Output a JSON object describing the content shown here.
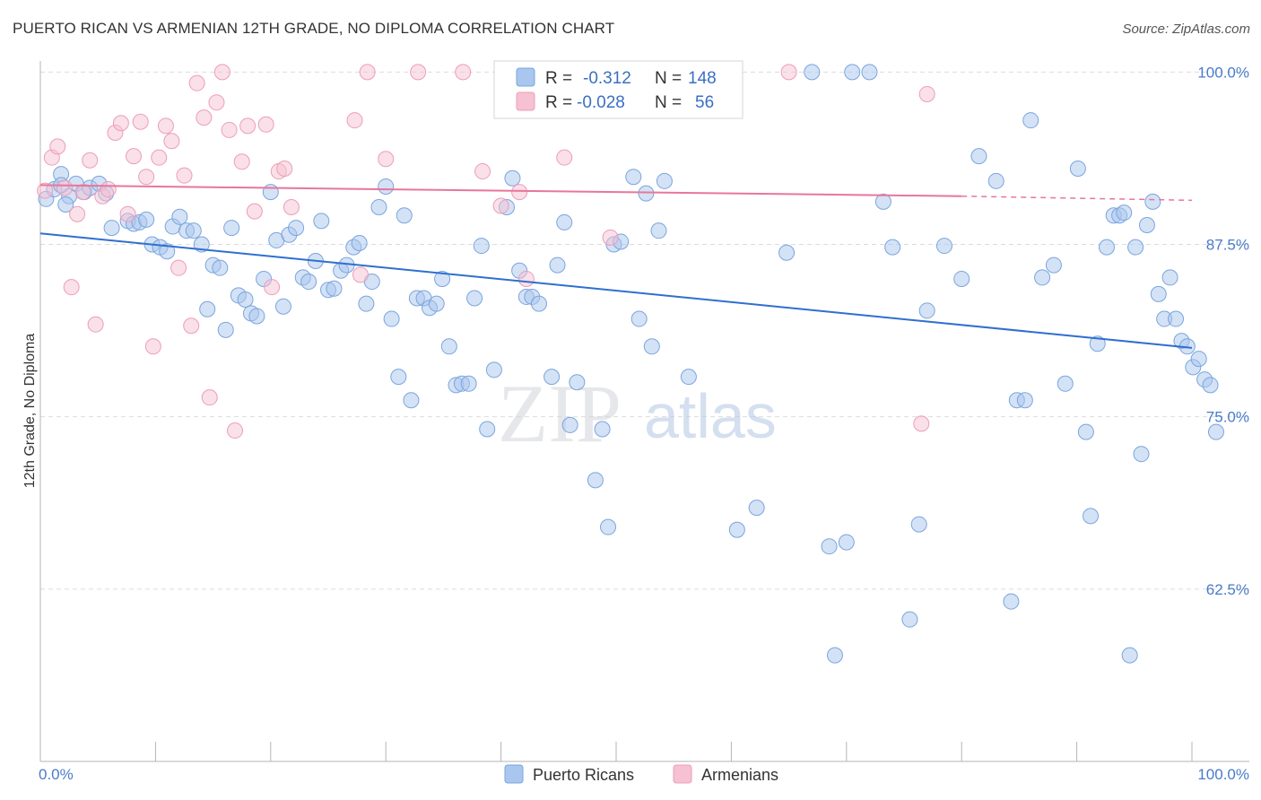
{
  "title": "PUERTO RICAN VS ARMENIAN 12TH GRADE, NO DIPLOMA CORRELATION CHART",
  "source": "Source: ZipAtlas.com",
  "watermark": {
    "zip": "ZIP",
    "atlas": "atlas"
  },
  "colors": {
    "blue_fill": "#a9c6ee",
    "blue_stroke": "#7aa5de",
    "blue_line": "#2f6fcf",
    "pink_fill": "#f6c1d2",
    "pink_stroke": "#ee9db7",
    "pink_line": "#e8769c",
    "tick_text": "#4a7bc8",
    "grid": "#dcdcdc"
  },
  "legend": {
    "rows": [
      {
        "r_label": "R =",
        "r_value": "-0.312",
        "n_label": "N =",
        "n_value": "148"
      },
      {
        "r_label": "R =",
        "r_value": "-0.028",
        "n_label": "N =",
        "n_value": "56"
      }
    ]
  },
  "chart_data": {
    "type": "scatter",
    "ylabel": "12th Grade, No Diploma",
    "xlim": [
      0,
      100
    ],
    "ylim": [
      50,
      101
    ],
    "x_tick_labels": [
      "0.0%",
      "100.0%"
    ],
    "y_ticks": [
      {
        "value": 100,
        "label": "100.0%"
      },
      {
        "value": 87.5,
        "label": "87.5%"
      },
      {
        "value": 75,
        "label": "75.0%"
      },
      {
        "value": 62.5,
        "label": "62.5%"
      }
    ],
    "grid": true,
    "legend_position": "top-center",
    "series": [
      {
        "name": "Puerto Ricans",
        "r": -0.312,
        "n": 148,
        "trend": {
          "x0": 0,
          "y0": 88.3,
          "x1": 100,
          "y1": 80.0
        },
        "points": [
          [
            0.5,
            90.8
          ],
          [
            1.2,
            91.5
          ],
          [
            1.8,
            92.6
          ],
          [
            2.5,
            91.0
          ],
          [
            3.1,
            91.9
          ],
          [
            3.8,
            91.3
          ],
          [
            4.3,
            91.6
          ],
          [
            5.1,
            91.9
          ],
          [
            5.7,
            91.2
          ],
          [
            7.6,
            89.2
          ],
          [
            8.1,
            89.0
          ],
          [
            8.6,
            89.1
          ],
          [
            9.2,
            89.3
          ],
          [
            9.7,
            87.5
          ],
          [
            10.4,
            87.3
          ],
          [
            11.0,
            87.0
          ],
          [
            11.5,
            88.8
          ],
          [
            12.1,
            89.5
          ],
          [
            12.7,
            88.5
          ],
          [
            13.3,
            88.5
          ],
          [
            14.0,
            87.5
          ],
          [
            14.5,
            82.8
          ],
          [
            15.0,
            86.0
          ],
          [
            15.6,
            85.8
          ],
          [
            16.1,
            81.3
          ],
          [
            16.6,
            88.7
          ],
          [
            17.2,
            83.8
          ],
          [
            17.8,
            83.5
          ],
          [
            18.3,
            82.5
          ],
          [
            18.8,
            82.3
          ],
          [
            19.4,
            85.0
          ],
          [
            20.0,
            91.3
          ],
          [
            20.5,
            87.8
          ],
          [
            21.1,
            83.0
          ],
          [
            21.6,
            88.2
          ],
          [
            22.2,
            88.7
          ],
          [
            22.8,
            85.1
          ],
          [
            23.3,
            84.8
          ],
          [
            23.9,
            86.3
          ],
          [
            24.4,
            89.2
          ],
          [
            25.0,
            84.2
          ],
          [
            25.5,
            84.3
          ],
          [
            26.1,
            85.6
          ],
          [
            26.6,
            86.0
          ],
          [
            27.2,
            87.3
          ],
          [
            27.7,
            87.6
          ],
          [
            28.3,
            83.2
          ],
          [
            28.8,
            84.8
          ],
          [
            29.4,
            90.2
          ],
          [
            30.0,
            91.7
          ],
          [
            30.5,
            82.1
          ],
          [
            31.1,
            77.9
          ],
          [
            31.6,
            89.6
          ],
          [
            32.2,
            76.2
          ],
          [
            32.7,
            83.6
          ],
          [
            33.3,
            83.6
          ],
          [
            33.8,
            82.9
          ],
          [
            34.4,
            83.2
          ],
          [
            34.9,
            85.0
          ],
          [
            35.5,
            80.1
          ],
          [
            36.1,
            77.3
          ],
          [
            36.6,
            77.4
          ],
          [
            37.2,
            77.4
          ],
          [
            37.7,
            83.6
          ],
          [
            38.3,
            87.4
          ],
          [
            38.8,
            74.1
          ],
          [
            39.4,
            78.4
          ],
          [
            40.5,
            90.2
          ],
          [
            41.0,
            92.3
          ],
          [
            41.6,
            85.6
          ],
          [
            42.2,
            83.7
          ],
          [
            42.7,
            83.7
          ],
          [
            43.3,
            83.2
          ],
          [
            44.4,
            77.9
          ],
          [
            44.9,
            86.0
          ],
          [
            45.5,
            89.1
          ],
          [
            46.0,
            74.4
          ],
          [
            46.6,
            77.5
          ],
          [
            48.2,
            70.4
          ],
          [
            48.8,
            74.1
          ],
          [
            49.3,
            67.0
          ],
          [
            49.8,
            87.5
          ],
          [
            50.4,
            87.7
          ],
          [
            51.5,
            92.4
          ],
          [
            52.0,
            82.1
          ],
          [
            52.6,
            91.2
          ],
          [
            53.1,
            80.1
          ],
          [
            53.7,
            88.5
          ],
          [
            54.2,
            92.1
          ],
          [
            56.3,
            77.9
          ],
          [
            58.4,
            100.0
          ],
          [
            60.5,
            66.8
          ],
          [
            62.2,
            68.4
          ],
          [
            64.8,
            86.9
          ],
          [
            67.0,
            100.0
          ],
          [
            68.5,
            65.6
          ],
          [
            69.0,
            57.7
          ],
          [
            70.0,
            65.9
          ],
          [
            70.5,
            100.0
          ],
          [
            72.0,
            100.0
          ],
          [
            73.2,
            90.6
          ],
          [
            74.0,
            87.3
          ],
          [
            75.5,
            60.3
          ],
          [
            76.3,
            67.2
          ],
          [
            77.0,
            82.7
          ],
          [
            78.5,
            87.4
          ],
          [
            80.0,
            85.0
          ],
          [
            81.5,
            93.9
          ],
          [
            83.0,
            92.1
          ],
          [
            84.3,
            61.6
          ],
          [
            84.8,
            76.2
          ],
          [
            85.5,
            76.2
          ],
          [
            86.0,
            96.5
          ],
          [
            87.0,
            85.1
          ],
          [
            88.0,
            86.0
          ],
          [
            89.0,
            77.4
          ],
          [
            90.1,
            93.0
          ],
          [
            90.8,
            73.9
          ],
          [
            91.2,
            67.8
          ],
          [
            91.8,
            80.3
          ],
          [
            92.6,
            87.3
          ],
          [
            93.2,
            89.6
          ],
          [
            93.7,
            89.6
          ],
          [
            94.1,
            89.8
          ],
          [
            94.6,
            57.7
          ],
          [
            95.1,
            87.3
          ],
          [
            95.6,
            72.3
          ],
          [
            96.1,
            88.9
          ],
          [
            96.6,
            90.6
          ],
          [
            97.1,
            83.9
          ],
          [
            97.6,
            82.1
          ],
          [
            98.1,
            85.1
          ],
          [
            98.6,
            82.1
          ],
          [
            99.1,
            80.5
          ],
          [
            99.6,
            80.1
          ],
          [
            100.1,
            78.6
          ],
          [
            100.6,
            79.2
          ],
          [
            101.1,
            77.7
          ],
          [
            101.6,
            77.3
          ],
          [
            102.1,
            73.9
          ],
          [
            1.8,
            91.8
          ],
          [
            2.2,
            90.4
          ],
          [
            6.2,
            88.7
          ]
        ]
      },
      {
        "name": "Armenians",
        "r": -0.028,
        "n": 56,
        "trend": {
          "x0": 0,
          "y0": 91.8,
          "x1": 80,
          "y1": 91.0,
          "dash_to_x": 100,
          "dash_to_y": 90.7
        },
        "points": [
          [
            0.4,
            91.4
          ],
          [
            1.0,
            93.8
          ],
          [
            1.5,
            94.6
          ],
          [
            2.1,
            91.6
          ],
          [
            2.7,
            84.4
          ],
          [
            3.2,
            89.7
          ],
          [
            3.7,
            91.3
          ],
          [
            4.3,
            93.6
          ],
          [
            4.8,
            81.7
          ],
          [
            5.4,
            91.0
          ],
          [
            5.9,
            91.5
          ],
          [
            6.5,
            95.6
          ],
          [
            7.0,
            96.3
          ],
          [
            7.6,
            89.7
          ],
          [
            8.1,
            93.9
          ],
          [
            8.7,
            96.4
          ],
          [
            9.2,
            92.4
          ],
          [
            9.8,
            80.1
          ],
          [
            10.3,
            93.8
          ],
          [
            10.9,
            96.1
          ],
          [
            11.4,
            95.0
          ],
          [
            12.0,
            85.8
          ],
          [
            12.5,
            92.5
          ],
          [
            13.1,
            81.6
          ],
          [
            13.6,
            99.2
          ],
          [
            14.2,
            96.7
          ],
          [
            14.7,
            76.4
          ],
          [
            15.3,
            97.8
          ],
          [
            15.8,
            100.0
          ],
          [
            16.4,
            95.8
          ],
          [
            16.9,
            74.0
          ],
          [
            17.5,
            93.5
          ],
          [
            18.0,
            96.1
          ],
          [
            18.6,
            89.9
          ],
          [
            19.6,
            96.2
          ],
          [
            20.1,
            84.4
          ],
          [
            20.7,
            92.8
          ],
          [
            21.2,
            93.0
          ],
          [
            21.8,
            90.2
          ],
          [
            27.3,
            96.5
          ],
          [
            27.8,
            85.3
          ],
          [
            28.4,
            100.0
          ],
          [
            30.0,
            93.7
          ],
          [
            32.8,
            100.0
          ],
          [
            36.7,
            100.0
          ],
          [
            38.4,
            92.8
          ],
          [
            40.0,
            90.3
          ],
          [
            41.6,
            91.3
          ],
          [
            42.2,
            85.0
          ],
          [
            43.3,
            97.3
          ],
          [
            45.5,
            93.8
          ],
          [
            49.5,
            88.0
          ],
          [
            54.9,
            100.0
          ],
          [
            65.0,
            100.0
          ],
          [
            76.5,
            74.5
          ],
          [
            77.0,
            98.4
          ]
        ]
      }
    ]
  }
}
